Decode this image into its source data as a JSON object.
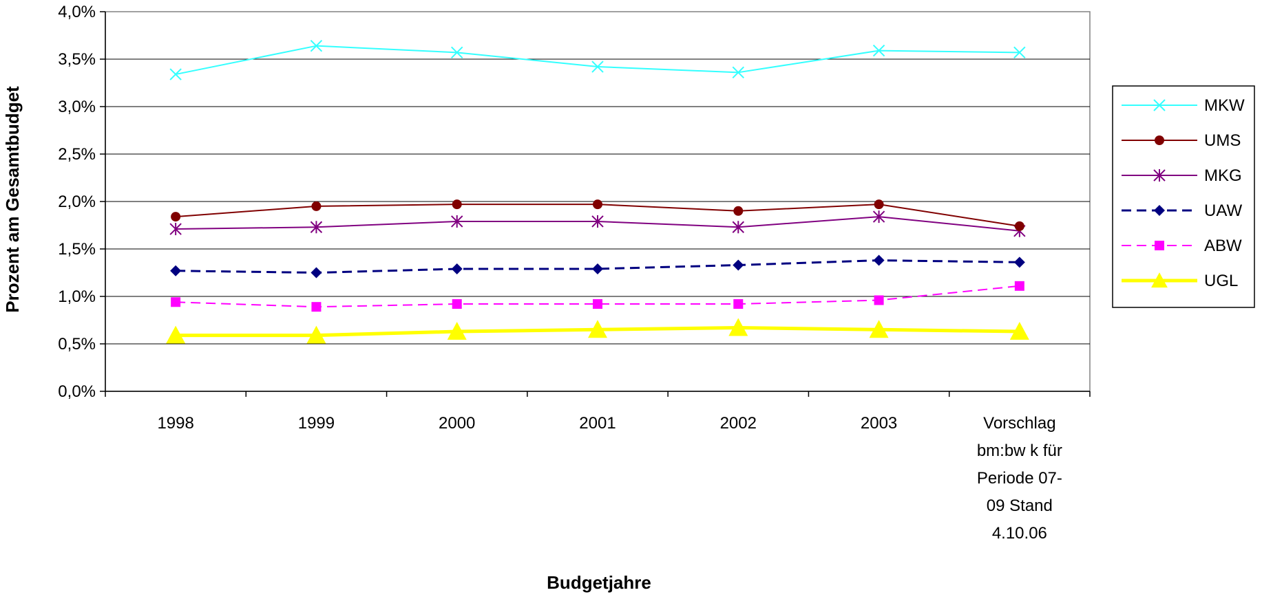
{
  "chart_data": {
    "type": "line",
    "title": "",
    "xlabel": "Budgetjahre",
    "ylabel": "Prozent am Gesamtbudget",
    "ylim": [
      0,
      0.04
    ],
    "y_ticks": [
      "0,0%",
      "0,5%",
      "1,0%",
      "1,5%",
      "2,0%",
      "2,5%",
      "3,0%",
      "3,5%",
      "4,0%"
    ],
    "categories": [
      [
        "1998"
      ],
      [
        "1999"
      ],
      [
        "2000"
      ],
      [
        "2001"
      ],
      [
        "2002"
      ],
      [
        "2003"
      ],
      [
        "Vorschlag",
        "bm:bw k für",
        "Periode 07-",
        "09 Stand",
        "4.10.06"
      ]
    ],
    "grid": true,
    "legend_position": "right",
    "series": [
      {
        "name": "MKW",
        "color": "#33ffff",
        "marker": "x",
        "dash": "solid",
        "width": 2,
        "values": [
          0.0334,
          0.0364,
          0.0357,
          0.0342,
          0.0336,
          0.0359,
          0.0357
        ]
      },
      {
        "name": "UMS",
        "color": "#800000",
        "marker": "circle",
        "dash": "solid",
        "width": 2,
        "values": [
          0.0184,
          0.0195,
          0.0197,
          0.0197,
          0.019,
          0.0197,
          0.0174
        ]
      },
      {
        "name": "MKG",
        "color": "#800080",
        "marker": "asterisk",
        "dash": "solid",
        "width": 2,
        "values": [
          0.0171,
          0.0173,
          0.0179,
          0.0179,
          0.0173,
          0.0184,
          0.0169
        ]
      },
      {
        "name": "UAW",
        "color": "#000080",
        "marker": "diamond",
        "dash": "dashed",
        "width": 3,
        "values": [
          0.0127,
          0.0125,
          0.0129,
          0.0129,
          0.0133,
          0.0138,
          0.0136
        ]
      },
      {
        "name": "ABW",
        "color": "#ff00ff",
        "marker": "square",
        "dash": "dashed",
        "width": 2,
        "values": [
          0.0094,
          0.0089,
          0.0092,
          0.0092,
          0.0092,
          0.0096,
          0.0111
        ]
      },
      {
        "name": "UGL",
        "color": "#ffff00",
        "marker": "triangle",
        "dash": "solid",
        "width": 5,
        "values": [
          0.0059,
          0.0059,
          0.0063,
          0.0065,
          0.0067,
          0.0065,
          0.0063
        ]
      }
    ]
  }
}
